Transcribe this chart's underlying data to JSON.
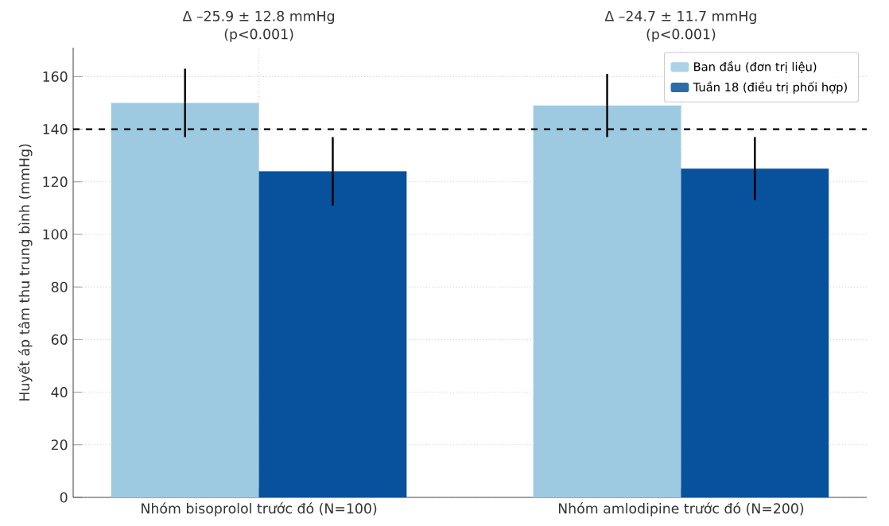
{
  "chart_data": {
    "type": "bar",
    "ylabel": "Huyết áp tâm thu trung bình (mmHg)",
    "categories": [
      "Nhóm bisoprolol trước đó (N=100)",
      "Nhóm amlodipine trước đó (N=200)"
    ],
    "series": [
      {
        "name": "Ban đầu (đơn trị liệu)",
        "color": "#9ecae1",
        "values": [
          150,
          149
        ],
        "errors": [
          13,
          12
        ]
      },
      {
        "name": "Tuần 18 (điều trị phối hợp)",
        "color": "#08519c",
        "values": [
          124,
          125
        ],
        "errors": [
          13,
          12
        ]
      }
    ],
    "ylim": [
      0,
      171
    ],
    "yticks": [
      0,
      20,
      40,
      60,
      80,
      100,
      120,
      140,
      160
    ],
    "ref_lines": [
      {
        "axis": "y",
        "value": 140,
        "color": "#000000",
        "line_style": "dashed"
      }
    ],
    "annotations": [
      "Δ –25.9 ± 12.8 mmHg",
      "(p<0.001)",
      "Δ –24.7 ± 11.7 mmHg",
      "(p<0.001)"
    ],
    "grid": true,
    "legend": "top right"
  }
}
